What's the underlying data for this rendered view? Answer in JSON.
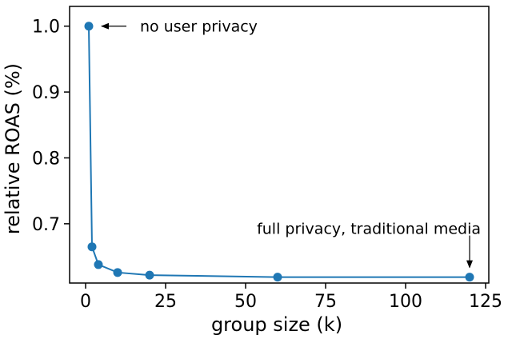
{
  "chart_data": {
    "type": "line",
    "xlabel": "group size (k)",
    "ylabel": "relative ROAS (%)",
    "xlim": [
      -5,
      126
    ],
    "ylim": [
      0.61,
      1.03
    ],
    "xticks": [
      0,
      25,
      50,
      75,
      100,
      125
    ],
    "yticks": [
      0.7,
      0.8,
      0.9,
      1.0
    ],
    "xtick_labels": [
      "0",
      "25",
      "50",
      "75",
      "100",
      "125"
    ],
    "ytick_labels": [
      "0.7",
      "0.8",
      "0.9",
      "1.0"
    ],
    "grid": false,
    "series": [
      {
        "color": "#1f77b4",
        "x": [
          1,
          2,
          4,
          10,
          20,
          60,
          120
        ],
        "y": [
          1.0,
          0.665,
          0.638,
          0.626,
          0.622,
          0.619,
          0.619
        ]
      }
    ],
    "annotations": [
      {
        "text": "no user privacy",
        "point": [
          1,
          1.0
        ],
        "arrow": "left"
      },
      {
        "text": "full privacy, traditional media",
        "point": [
          120,
          0.619
        ],
        "arrow": "down"
      }
    ]
  }
}
